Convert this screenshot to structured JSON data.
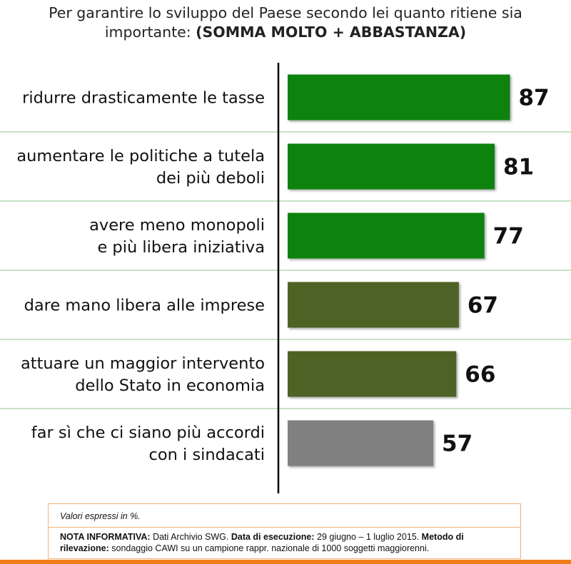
{
  "title": {
    "line1": "Per garantire lo sviluppo del Paese secondo lei quanto ritiene sia",
    "line2_normal": "importante: ",
    "line2_strong": "(SOMMA MOLTO + ABBASTANZA)"
  },
  "chart_data": {
    "type": "bar",
    "orientation": "horizontal",
    "categories": [
      [
        "ridurre drasticamente le tasse"
      ],
      [
        "aumentare le politiche a tutela",
        "dei più deboli"
      ],
      [
        "avere meno monopoli",
        "e più libera iniziativa"
      ],
      [
        "dare mano libera alle imprese"
      ],
      [
        "attuare un maggior intervento",
        "dello Stato in economia"
      ],
      [
        "far sì che ci siano più accordi",
        "con i sindacati"
      ]
    ],
    "values": [
      87,
      81,
      77,
      67,
      66,
      57
    ],
    "bar_colors": [
      "#0a830a",
      "#0a830a",
      "#0a830a",
      "#4f6228",
      "#4f6228",
      "#808080"
    ],
    "grid": true
  },
  "notes": {
    "values_note": "Valori espressi in %.",
    "info_label": "NOTA INFORMATIVA:",
    "info_text1": " Dati Archivio SWG. ",
    "date_label": "Data di esecuzione:",
    "date_text": " 29 giugno – 1 luglio 2015. ",
    "method_label": "Metodo di rilevazione:",
    "method_text": " sondaggio CAWI su un campione rappr. nazionale di 1000 soggetti maggiorenni."
  },
  "colors": {
    "gridline": "#8dc48d",
    "axis": "#000000",
    "footer": "#f07d1a",
    "notes_border": "#f0b27a"
  }
}
